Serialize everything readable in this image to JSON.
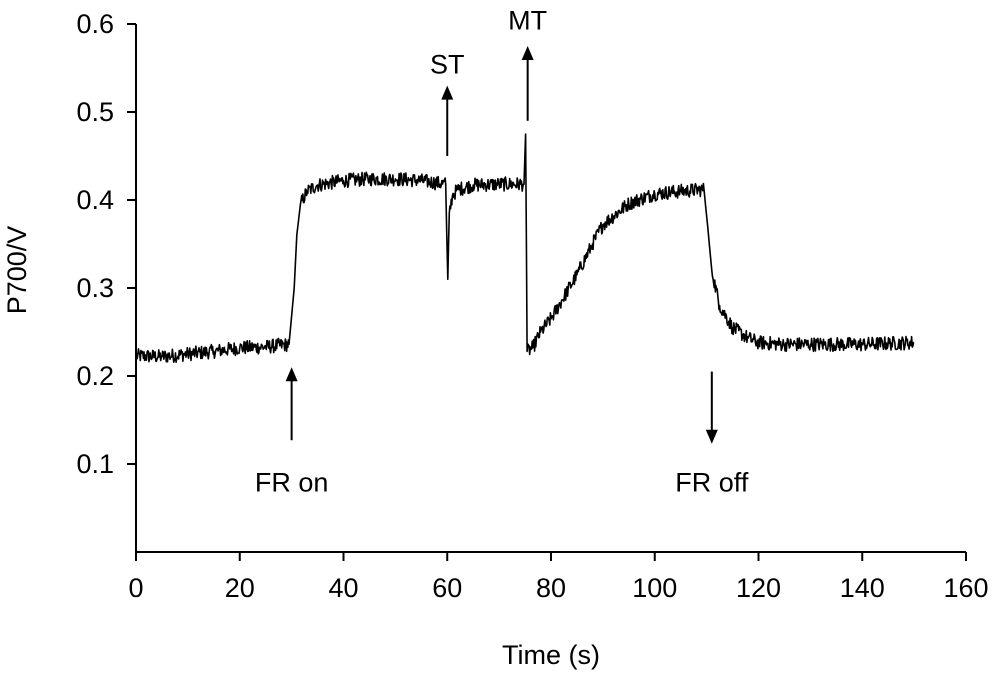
{
  "chart_data": {
    "type": "line",
    "title": "",
    "xlabel": "Time (s)",
    "ylabel": "P700/V",
    "xlim": [
      0,
      160
    ],
    "ylim": [
      0,
      0.6
    ],
    "x_ticks": [
      0,
      20,
      40,
      60,
      80,
      100,
      120,
      140,
      160
    ],
    "x_tick_labels": [
      "0",
      "20",
      "40",
      "60",
      "80",
      "100",
      "120",
      "140",
      "160"
    ],
    "y_ticks": [
      0.1,
      0.2,
      0.3,
      0.4,
      0.5,
      0.6
    ],
    "y_tick_labels": [
      "0.1",
      "0.2",
      "0.3",
      "0.4",
      "0.5",
      "0.6"
    ],
    "grid": false,
    "series": [
      {
        "color": "#000000",
        "x": [
          0,
          5,
          10,
          15,
          20,
          25,
          29.5,
          30.5,
          31,
          31.7,
          33,
          35,
          40,
          45,
          50,
          55,
          59.7,
          60.1,
          60.4,
          61,
          62,
          65,
          70,
          74.8,
          75.1,
          75.4,
          76.5,
          78,
          80,
          82,
          85,
          88,
          90,
          95,
          100,
          105,
          109.5,
          110.2,
          111,
          112.5,
          115,
          118,
          120,
          125,
          130,
          140,
          150
        ],
        "y": [
          0.223,
          0.222,
          0.225,
          0.228,
          0.232,
          0.233,
          0.236,
          0.3,
          0.36,
          0.395,
          0.41,
          0.417,
          0.422,
          0.424,
          0.424,
          0.422,
          0.418,
          0.31,
          0.385,
          0.405,
          0.412,
          0.417,
          0.418,
          0.418,
          0.475,
          0.228,
          0.232,
          0.25,
          0.265,
          0.285,
          0.315,
          0.35,
          0.372,
          0.396,
          0.407,
          0.41,
          0.412,
          0.37,
          0.32,
          0.28,
          0.255,
          0.243,
          0.238,
          0.236,
          0.236,
          0.236,
          0.238
        ]
      }
    ],
    "annotations": [
      {
        "text": "FR on",
        "x": 30,
        "direction": "up",
        "arrow_from": 0.127,
        "arrow_to": 0.21,
        "label_y": 0.08
      },
      {
        "text": "ST",
        "x": 60,
        "direction": "up",
        "arrow_from": 0.45,
        "arrow_to": 0.53,
        "label_y": 0.555
      },
      {
        "text": "MT",
        "x": 75.5,
        "direction": "up",
        "arrow_from": 0.49,
        "arrow_to": 0.575,
        "label_y": 0.605
      },
      {
        "text": "FR off",
        "x": 111,
        "direction": "down",
        "arrow_from": 0.205,
        "arrow_to": 0.123,
        "label_y": 0.08
      }
    ]
  }
}
